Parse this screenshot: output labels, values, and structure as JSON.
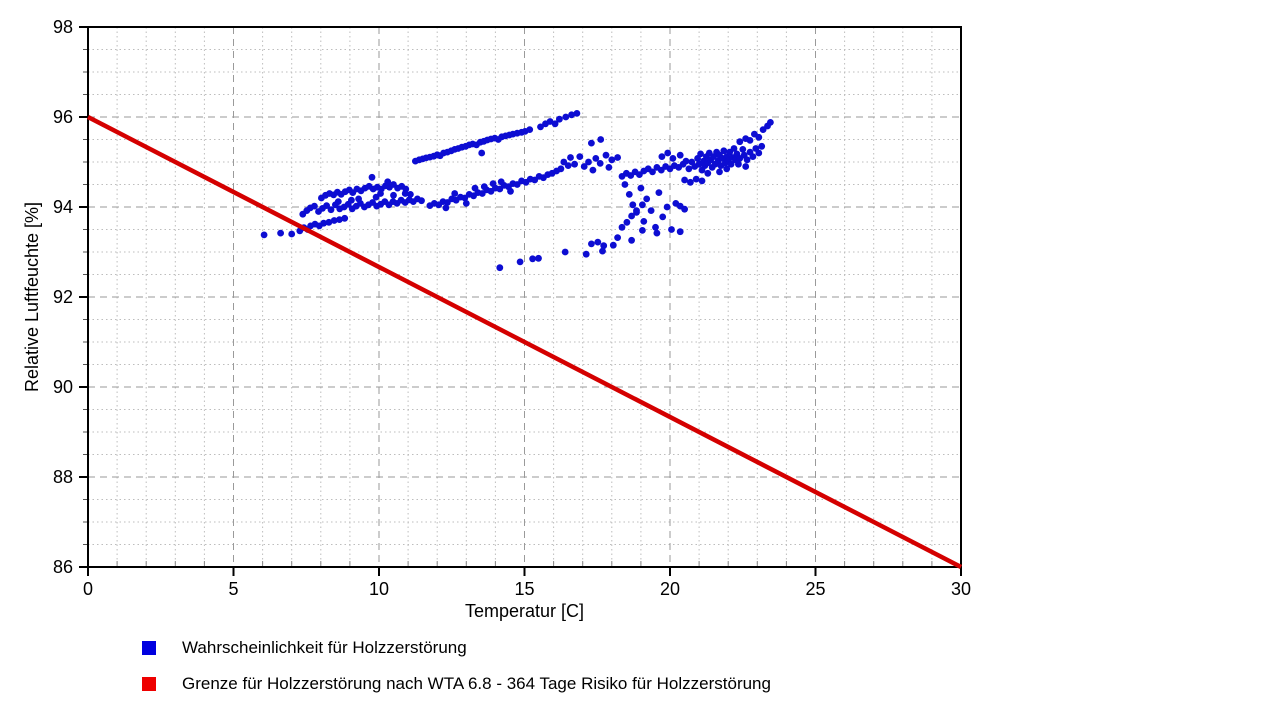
{
  "chart_data": {
    "type": "scatter",
    "title": "",
    "xlabel": "Temperatur [C]",
    "ylabel": "Relative Luftfeuchte [%]",
    "xlim": [
      0,
      30
    ],
    "ylim": [
      86,
      98
    ],
    "x_major_ticks": [
      0,
      5,
      10,
      15,
      20,
      25,
      30
    ],
    "x_minor_step": 1,
    "y_major_ticks": [
      86,
      88,
      90,
      92,
      94,
      96,
      98
    ],
    "y_minor_step": 0.5,
    "grid": "major dashed, minor dotted",
    "legend_position": "bottom-left",
    "colors": {
      "scatter": "#0d0dd2",
      "line": "#d40000",
      "legend_blue": "#0000e0",
      "legend_red": "#ee0000",
      "grid_major": "#9a9a9a",
      "grid_minor": "#bdbdbd",
      "axis": "#000000"
    },
    "series": [
      {
        "name": "Wahrscheinlichkeit für Holzzerstörung",
        "type": "scatter",
        "color": "#0d0dd2",
        "points": [
          [
            6.05,
            93.38
          ],
          [
            6.62,
            93.42
          ],
          [
            7.0,
            93.4
          ],
          [
            7.28,
            93.47
          ],
          [
            7.42,
            93.54
          ],
          [
            7.55,
            93.5
          ],
          [
            7.65,
            93.58
          ],
          [
            7.8,
            93.62
          ],
          [
            7.95,
            93.58
          ],
          [
            8.1,
            93.64
          ],
          [
            8.28,
            93.66
          ],
          [
            8.46,
            93.7
          ],
          [
            8.64,
            93.72
          ],
          [
            8.82,
            93.75
          ],
          [
            7.38,
            93.84
          ],
          [
            7.52,
            93.92
          ],
          [
            7.64,
            93.98
          ],
          [
            7.78,
            94.02
          ],
          [
            7.92,
            93.9
          ],
          [
            8.06,
            93.97
          ],
          [
            8.2,
            94.03
          ],
          [
            8.35,
            93.94
          ],
          [
            8.5,
            94.05
          ],
          [
            8.65,
            93.96
          ],
          [
            8.8,
            94.0
          ],
          [
            8.94,
            94.06
          ],
          [
            9.08,
            93.96
          ],
          [
            9.22,
            94.02
          ],
          [
            9.36,
            94.08
          ],
          [
            9.5,
            94.0
          ],
          [
            9.64,
            94.05
          ],
          [
            9.78,
            94.1
          ],
          [
            9.92,
            94.02
          ],
          [
            10.06,
            94.06
          ],
          [
            10.2,
            94.12
          ],
          [
            10.34,
            94.05
          ],
          [
            10.48,
            94.12
          ],
          [
            10.62,
            94.08
          ],
          [
            10.76,
            94.15
          ],
          [
            10.9,
            94.1
          ],
          [
            11.04,
            94.16
          ],
          [
            11.18,
            94.12
          ],
          [
            11.32,
            94.18
          ],
          [
            11.46,
            94.14
          ],
          [
            8.02,
            94.2
          ],
          [
            8.16,
            94.26
          ],
          [
            8.3,
            94.3
          ],
          [
            8.44,
            94.27
          ],
          [
            8.57,
            94.33
          ],
          [
            8.7,
            94.28
          ],
          [
            8.84,
            94.34
          ],
          [
            8.98,
            94.38
          ],
          [
            9.1,
            94.32
          ],
          [
            9.24,
            94.4
          ],
          [
            9.38,
            94.36
          ],
          [
            9.52,
            94.42
          ],
          [
            9.66,
            94.46
          ],
          [
            9.8,
            94.4
          ],
          [
            9.94,
            94.44
          ],
          [
            10.08,
            94.4
          ],
          [
            10.22,
            94.47
          ],
          [
            10.36,
            94.44
          ],
          [
            10.5,
            94.5
          ],
          [
            10.64,
            94.42
          ],
          [
            10.78,
            94.46
          ],
          [
            10.92,
            94.4
          ],
          [
            10.3,
            94.56
          ],
          [
            9.76,
            94.66
          ],
          [
            9.3,
            94.18
          ],
          [
            9.9,
            94.22
          ],
          [
            10.5,
            94.26
          ],
          [
            11.08,
            94.28
          ],
          [
            8.6,
            94.12
          ],
          [
            9.05,
            94.15
          ],
          [
            10.05,
            94.3
          ],
          [
            10.9,
            94.3
          ],
          [
            11.75,
            94.03
          ],
          [
            11.9,
            94.08
          ],
          [
            12.05,
            94.05
          ],
          [
            12.2,
            94.12
          ],
          [
            12.35,
            94.1
          ],
          [
            12.5,
            94.18
          ],
          [
            12.65,
            94.15
          ],
          [
            12.8,
            94.22
          ],
          [
            12.95,
            94.2
          ],
          [
            13.1,
            94.28
          ],
          [
            13.25,
            94.25
          ],
          [
            13.4,
            94.32
          ],
          [
            13.55,
            94.3
          ],
          [
            13.7,
            94.38
          ],
          [
            13.85,
            94.35
          ],
          [
            14.0,
            94.42
          ],
          [
            14.15,
            94.4
          ],
          [
            14.3,
            94.48
          ],
          [
            14.45,
            94.45
          ],
          [
            14.6,
            94.52
          ],
          [
            14.75,
            94.5
          ],
          [
            14.9,
            94.58
          ],
          [
            15.05,
            94.55
          ],
          [
            15.2,
            94.62
          ],
          [
            15.35,
            94.6
          ],
          [
            15.5,
            94.68
          ],
          [
            15.65,
            94.65
          ],
          [
            15.8,
            94.72
          ],
          [
            15.95,
            94.75
          ],
          [
            16.1,
            94.8
          ],
          [
            16.25,
            94.85
          ],
          [
            13.3,
            94.42
          ],
          [
            13.62,
            94.45
          ],
          [
            13.92,
            94.52
          ],
          [
            12.6,
            94.3
          ],
          [
            14.2,
            94.56
          ],
          [
            12.3,
            93.98
          ],
          [
            13.0,
            94.08
          ],
          [
            14.52,
            94.35
          ],
          [
            16.35,
            95.0
          ],
          [
            16.5,
            94.92
          ],
          [
            16.58,
            95.1
          ],
          [
            16.72,
            94.95
          ],
          [
            16.9,
            95.12
          ],
          [
            17.05,
            94.9
          ],
          [
            17.2,
            95.0
          ],
          [
            17.45,
            95.08
          ],
          [
            17.6,
            94.97
          ],
          [
            17.8,
            95.15
          ],
          [
            18.0,
            95.05
          ],
          [
            18.2,
            95.1
          ],
          [
            17.35,
            94.82
          ],
          [
            17.9,
            94.88
          ],
          [
            17.3,
            95.42
          ],
          [
            17.62,
            95.5
          ],
          [
            18.35,
            94.68
          ],
          [
            18.5,
            94.75
          ],
          [
            18.65,
            94.7
          ],
          [
            18.8,
            94.78
          ],
          [
            18.95,
            94.72
          ],
          [
            19.1,
            94.8
          ],
          [
            19.25,
            94.85
          ],
          [
            19.4,
            94.78
          ],
          [
            19.55,
            94.88
          ],
          [
            19.7,
            94.82
          ],
          [
            19.85,
            94.9
          ],
          [
            20.0,
            94.85
          ],
          [
            20.15,
            94.92
          ],
          [
            20.3,
            94.88
          ],
          [
            20.45,
            94.95
          ],
          [
            19.72,
            95.12
          ],
          [
            19.92,
            95.2
          ],
          [
            20.1,
            95.08
          ],
          [
            20.35,
            95.15
          ],
          [
            20.55,
            95.02
          ],
          [
            18.45,
            94.5
          ],
          [
            18.6,
            94.28
          ],
          [
            18.72,
            94.05
          ],
          [
            18.85,
            93.88
          ],
          [
            19.0,
            94.42
          ],
          [
            19.1,
            93.68
          ],
          [
            19.2,
            94.18
          ],
          [
            19.35,
            93.92
          ],
          [
            19.5,
            93.55
          ],
          [
            19.62,
            94.32
          ],
          [
            19.75,
            93.78
          ],
          [
            19.9,
            94.0
          ],
          [
            20.05,
            93.5
          ],
          [
            20.2,
            94.08
          ],
          [
            20.35,
            93.45
          ],
          [
            19.05,
            93.48
          ],
          [
            19.55,
            93.42
          ],
          [
            20.5,
            93.95
          ],
          [
            20.35,
            94.02
          ],
          [
            20.5,
            94.6
          ],
          [
            20.7,
            94.55
          ],
          [
            20.9,
            94.62
          ],
          [
            21.1,
            94.58
          ],
          [
            20.65,
            94.85
          ],
          [
            20.75,
            95.0
          ],
          [
            20.85,
            94.9
          ],
          [
            20.95,
            95.08
          ],
          [
            21.0,
            94.95
          ],
          [
            21.05,
            95.18
          ],
          [
            21.1,
            94.82
          ],
          [
            21.15,
            95.02
          ],
          [
            21.2,
            94.92
          ],
          [
            21.25,
            95.12
          ],
          [
            21.3,
            94.98
          ],
          [
            21.35,
            95.2
          ],
          [
            21.4,
            95.05
          ],
          [
            21.45,
            94.88
          ],
          [
            21.5,
            95.12
          ],
          [
            21.55,
            94.95
          ],
          [
            21.6,
            95.22
          ],
          [
            21.65,
            95.02
          ],
          [
            21.7,
            95.15
          ],
          [
            21.75,
            94.92
          ],
          [
            21.8,
            95.08
          ],
          [
            21.85,
            95.25
          ],
          [
            21.9,
            94.98
          ],
          [
            21.95,
            95.12
          ],
          [
            22.0,
            95.02
          ],
          [
            22.05,
            95.22
          ],
          [
            22.1,
            94.95
          ],
          [
            22.15,
            95.1
          ],
          [
            22.2,
            95.3
          ],
          [
            22.25,
            95.05
          ],
          [
            22.3,
            95.18
          ],
          [
            22.4,
            95.08
          ],
          [
            22.5,
            95.28
          ],
          [
            22.55,
            95.15
          ],
          [
            22.65,
            95.05
          ],
          [
            22.75,
            95.22
          ],
          [
            22.85,
            95.12
          ],
          [
            22.95,
            95.3
          ],
          [
            23.05,
            95.2
          ],
          [
            23.15,
            95.35
          ],
          [
            22.35,
            94.95
          ],
          [
            22.6,
            94.9
          ],
          [
            21.95,
            94.85
          ],
          [
            21.3,
            94.75
          ],
          [
            21.7,
            94.78
          ],
          [
            22.4,
            95.45
          ],
          [
            22.6,
            95.52
          ],
          [
            22.75,
            95.48
          ],
          [
            22.9,
            95.62
          ],
          [
            23.05,
            95.55
          ],
          [
            23.2,
            95.72
          ],
          [
            23.35,
            95.8
          ],
          [
            23.45,
            95.88
          ],
          [
            11.25,
            95.02
          ],
          [
            11.38,
            95.05
          ],
          [
            11.5,
            95.07
          ],
          [
            11.62,
            95.09
          ],
          [
            11.75,
            95.11
          ],
          [
            11.88,
            95.13
          ],
          [
            12.0,
            95.16
          ],
          [
            12.1,
            95.14
          ],
          [
            12.22,
            95.2
          ],
          [
            12.35,
            95.22
          ],
          [
            12.48,
            95.25
          ],
          [
            12.6,
            95.28
          ],
          [
            12.72,
            95.3
          ],
          [
            12.85,
            95.33
          ],
          [
            12.98,
            95.35
          ],
          [
            13.1,
            95.38
          ],
          [
            13.22,
            95.4
          ],
          [
            13.35,
            95.38
          ],
          [
            13.48,
            95.44
          ],
          [
            13.6,
            95.46
          ],
          [
            13.72,
            95.49
          ],
          [
            13.85,
            95.51
          ],
          [
            13.98,
            95.53
          ],
          [
            14.1,
            95.5
          ],
          [
            14.22,
            95.56
          ],
          [
            14.35,
            95.58
          ],
          [
            14.48,
            95.6
          ],
          [
            14.6,
            95.62
          ],
          [
            14.75,
            95.64
          ],
          [
            14.9,
            95.66
          ],
          [
            15.02,
            95.68
          ],
          [
            15.18,
            95.72
          ],
          [
            13.53,
            95.2
          ],
          [
            15.55,
            95.78
          ],
          [
            15.72,
            95.85
          ],
          [
            15.88,
            95.9
          ],
          [
            16.05,
            95.85
          ],
          [
            16.2,
            95.95
          ],
          [
            16.42,
            96.0
          ],
          [
            16.62,
            96.05
          ],
          [
            16.8,
            96.08
          ],
          [
            14.15,
            92.65
          ],
          [
            14.85,
            92.78
          ],
          [
            15.28,
            92.85
          ],
          [
            15.48,
            92.86
          ],
          [
            16.4,
            93.0
          ],
          [
            17.12,
            92.95
          ],
          [
            17.3,
            93.18
          ],
          [
            17.52,
            93.22
          ],
          [
            17.68,
            93.02
          ],
          [
            17.72,
            93.14
          ],
          [
            18.68,
            93.26
          ],
          [
            18.05,
            93.15
          ],
          [
            18.2,
            93.32
          ],
          [
            18.35,
            93.55
          ],
          [
            18.52,
            93.66
          ],
          [
            18.68,
            93.8
          ],
          [
            18.85,
            93.92
          ],
          [
            19.05,
            94.05
          ]
        ]
      },
      {
        "name": "Grenze für Holzzerstörung nach WTA 6.8 - 364 Tage Risiko für Holzzerstörung",
        "type": "line",
        "color": "#d40000",
        "points": [
          [
            0,
            96
          ],
          [
            30,
            86
          ]
        ]
      }
    ]
  },
  "legend": [
    {
      "label": "Wahrscheinlichkeit für Holzzerstörung",
      "color": "#0000e0"
    },
    {
      "label": "Grenze für Holzzerstörung nach WTA 6.8 - 364 Tage Risiko für Holzzerstörung",
      "color": "#ee0000"
    }
  ]
}
